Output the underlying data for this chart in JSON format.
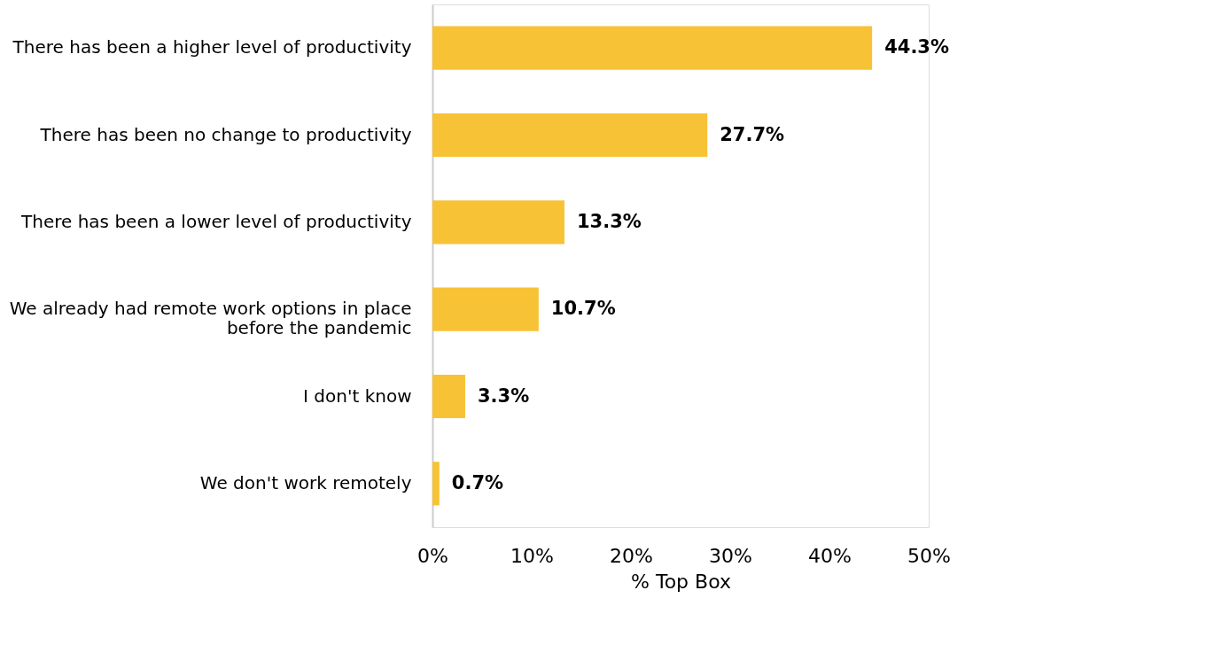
{
  "chart_data": {
    "type": "bar",
    "orientation": "horizontal",
    "categories": [
      "There has been a higher level of productivity",
      "There has been no change to productivity",
      "There has been a lower level of productivity",
      "We already had remote work options in place before the pandemic",
      "I don't know",
      "We don't work remotely"
    ],
    "values": [
      44.3,
      27.7,
      13.3,
      10.7,
      3.3,
      0.7
    ],
    "value_labels": [
      "44.3%",
      "27.7%",
      "13.3%",
      "10.7%",
      "3.3%",
      "0.7%"
    ],
    "color": "#f7c235",
    "xlabel": "% Top Box",
    "xlim": [
      0,
      50
    ],
    "xticks": [
      {
        "value": 0,
        "label": "0%"
      },
      {
        "value": 10,
        "label": "10%"
      },
      {
        "value": 20,
        "label": "20%"
      },
      {
        "value": 30,
        "label": "30%"
      },
      {
        "value": 40,
        "label": "40%"
      },
      {
        "value": 50,
        "label": "50%"
      }
    ],
    "grid": false
  }
}
